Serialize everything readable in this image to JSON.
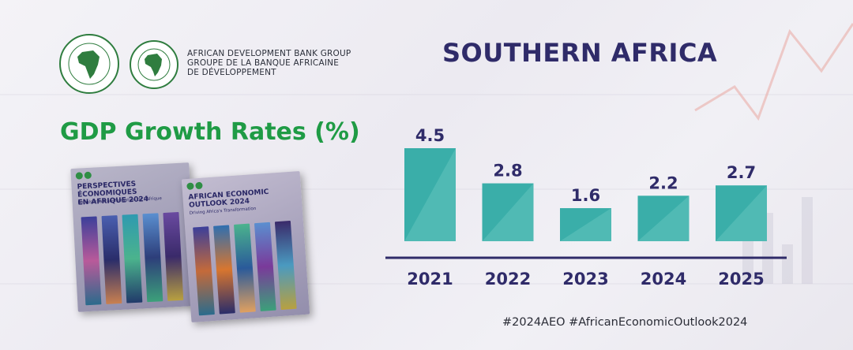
{
  "logo": {
    "seal1_alt": "BANQUE AFRICAINE DE DÉVELOPPEMENT · AFRICAN DEVELOPMENT BANK",
    "seal2_alt": "AFRICAN DEVELOPMENT FUND · FONDS AFRICAIN DE DÉVELOPPEMENT",
    "line1": "AFRICAN DEVELOPMENT BANK GROUP",
    "line2": "GROUPE DE LA BANQUE AFRICAINE",
    "line3": "DE DÉVELOPPEMENT"
  },
  "region_title": "SOUTHERN AFRICA",
  "gdp_title": "GDP Growth Rates (%)",
  "books": {
    "fr_title_1": "PERSPECTIVES ÉCONOMIQUES",
    "fr_title_2": "EN AFRIQUE 2024",
    "fr_sub": "Impulser la transformation de l'Afrique",
    "en_title_1": "AFRICAN ECONOMIC",
    "en_title_2": "OUTLOOK 2024",
    "en_sub": "Driving Africa's Transformation"
  },
  "colors": {
    "bar": "#3aaea9",
    "bar_light": "#63c4bd",
    "axis": "#2f2b69",
    "label": "#2f2b69",
    "green": "#1f9b45"
  },
  "chart_data": {
    "type": "bar",
    "categories": [
      "2021",
      "2022",
      "2023",
      "2024",
      "2025"
    ],
    "values": [
      4.5,
      2.8,
      1.6,
      2.2,
      2.7
    ],
    "value_labels": [
      "4.5",
      "2.8",
      "1.6",
      "2.2",
      "2.7"
    ],
    "title": "SOUTHERN AFRICA",
    "ylim": [
      0,
      4.5
    ],
    "grid": false,
    "legend": "none"
  },
  "hashtags": "#2024AEO #AfricanEconomicOutlook2024"
}
